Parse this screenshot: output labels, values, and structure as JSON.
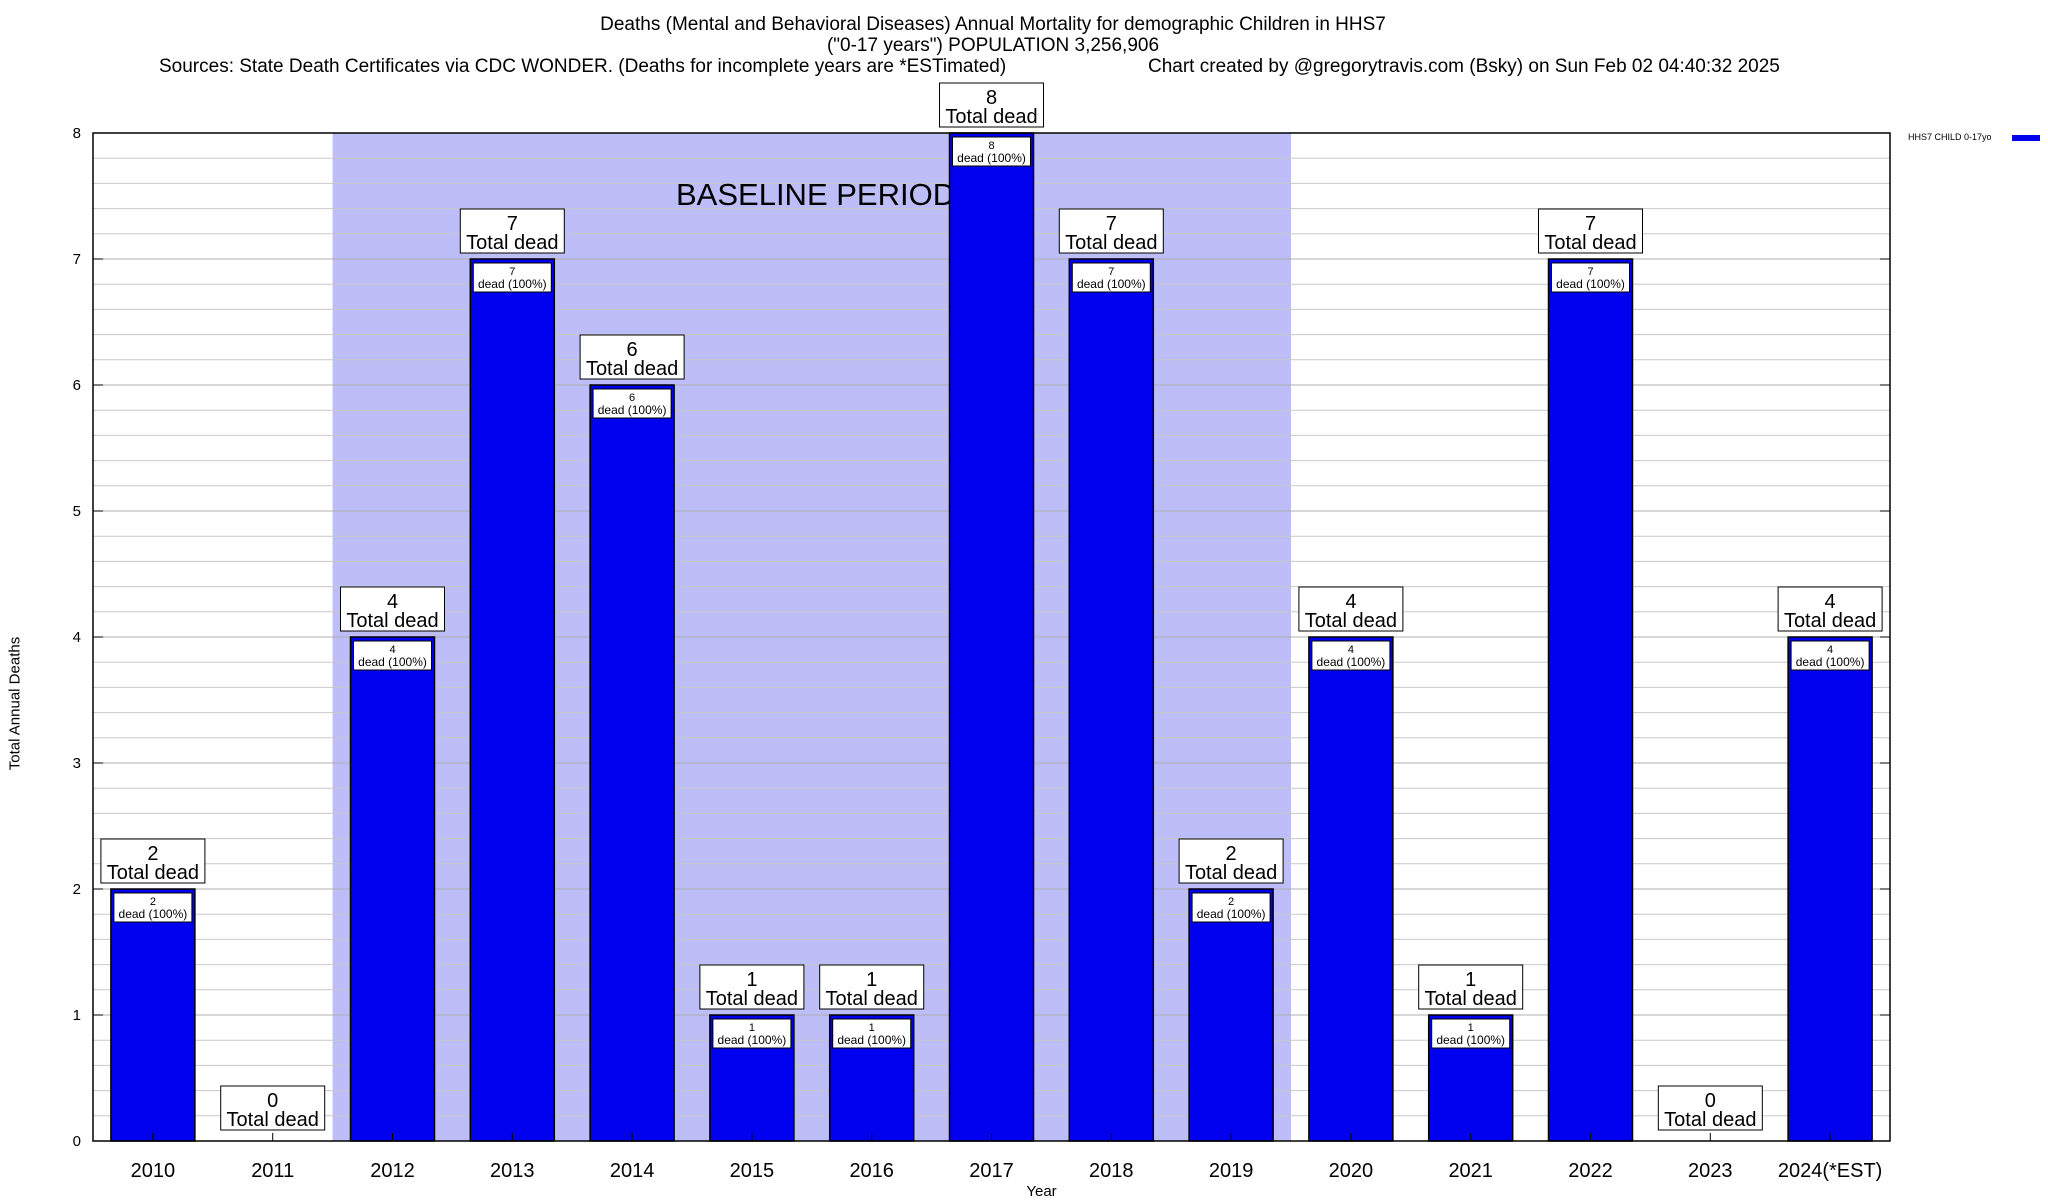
{
  "title": {
    "line1": "Deaths (Mental and Behavioral Diseases) Annual Mortality for demographic Children in HHS7",
    "line2": "(\"0-17 years\") POPULATION 3,256,906",
    "line3": "Sources: State Death Certificates via CDC WONDER. (Deaths for incomplete years are *ESTimated)",
    "line4": "Chart created by @gregorytravis.com (Bsky) on Sun Feb 02 04:40:32 2025"
  },
  "colors": {
    "bar": "#0000ee",
    "baseline_shade": "#bdbdf7",
    "grid": "#c8c8c8"
  },
  "chart_data": {
    "type": "bar",
    "categories": [
      "2010",
      "2011",
      "2012",
      "2013",
      "2014",
      "2015",
      "2016",
      "2017",
      "2018",
      "2019",
      "2020",
      "2021",
      "2022",
      "2023",
      "2024(*EST)"
    ],
    "series": [
      {
        "name": "HHS7 CHILD 0-17yo",
        "values": [
          2,
          0,
          4,
          7,
          6,
          1,
          1,
          8,
          7,
          2,
          4,
          1,
          7,
          0,
          4
        ]
      }
    ],
    "xlabel": "Year",
    "ylabel": "Total Annual Deaths",
    "ylim": [
      0,
      8
    ],
    "yticks": [
      0,
      1,
      2,
      3,
      4,
      5,
      6,
      7,
      8
    ],
    "grid": true,
    "legend_position": "top-right",
    "baseline_period": {
      "label": "BASELINE PERIOD",
      "from": "2012",
      "to": "2019"
    },
    "bar_top_label": "Total dead",
    "bar_inner_label": "dead (100%)"
  }
}
